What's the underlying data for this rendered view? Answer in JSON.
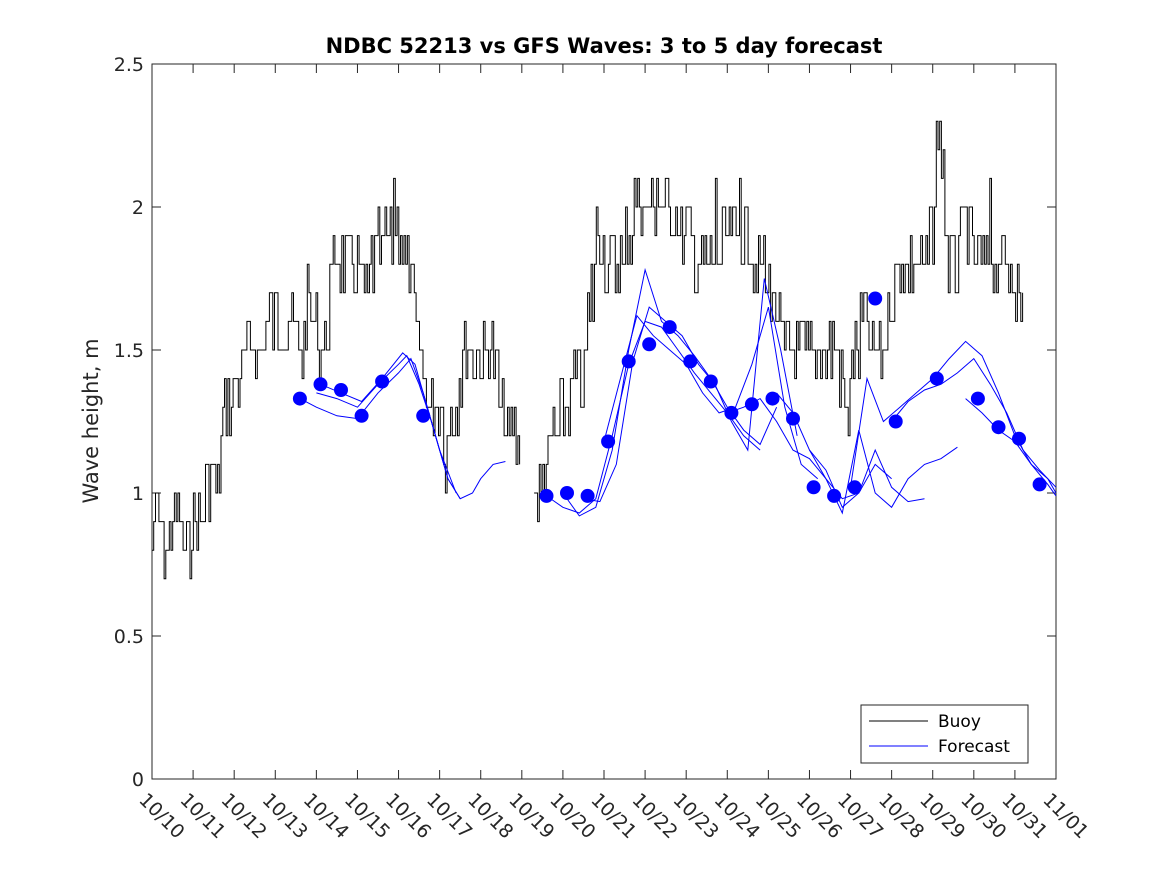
{
  "colors": {
    "buoy": "#000000",
    "forecast": "#0000ff",
    "axis": "#262626"
  },
  "chart_data": {
    "type": "line",
    "title": "NDBC 52213 vs GFS Waves: 3 to 5 day forecast",
    "xlabel": "",
    "ylabel": "Wave height, m",
    "xlim": [
      0,
      22
    ],
    "ylim": [
      0,
      2.5
    ],
    "yticks": [
      0,
      0.5,
      1,
      1.5,
      2,
      2.5
    ],
    "ytick_labels": [
      "0",
      "0.5",
      "1",
      "1.5",
      "2",
      "2.5"
    ],
    "xtick_labels": [
      "10/10",
      "10/11",
      "10/12",
      "10/13",
      "10/14",
      "10/15",
      "10/16",
      "10/17",
      "10/18",
      "10/19",
      "10/20",
      "10/21",
      "10/22",
      "10/23",
      "10/24",
      "10/25",
      "10/26",
      "10/27",
      "10/28",
      "10/29",
      "10/30",
      "10/31",
      "11/01"
    ],
    "grid": false,
    "legend": {
      "location": "bottom-right",
      "entries": [
        "Buoy",
        "Forecast"
      ]
    },
    "buoy_anchors": [
      [
        0.0,
        0.8
      ],
      [
        0.05,
        0.9
      ],
      [
        0.4,
        0.8
      ],
      [
        0.5,
        0.9
      ],
      [
        0.9,
        0.8
      ],
      [
        1.0,
        0.9
      ],
      [
        1.2,
        0.9
      ],
      [
        1.35,
        1.0
      ],
      [
        1.5,
        1.1
      ],
      [
        1.6,
        1.0
      ],
      [
        1.7,
        1.3
      ],
      [
        1.9,
        1.3
      ],
      [
        2.1,
        1.4
      ],
      [
        2.25,
        1.45
      ],
      [
        2.4,
        1.55
      ],
      [
        2.6,
        1.5
      ],
      [
        2.8,
        1.6
      ],
      [
        3.0,
        1.55
      ],
      [
        3.2,
        1.6
      ],
      [
        3.5,
        1.55
      ],
      [
        3.7,
        1.5
      ],
      [
        3.8,
        1.7
      ],
      [
        4.0,
        1.45
      ],
      [
        4.2,
        1.5
      ],
      [
        4.4,
        1.75
      ],
      [
        4.6,
        1.85
      ],
      [
        4.8,
        1.8
      ],
      [
        5.0,
        1.8
      ],
      [
        5.2,
        1.65
      ],
      [
        5.4,
        1.8
      ],
      [
        5.6,
        1.85
      ],
      [
        5.8,
        1.9
      ],
      [
        5.95,
        2.0
      ],
      [
        6.1,
        1.8
      ],
      [
        6.3,
        1.75
      ],
      [
        6.5,
        1.5
      ],
      [
        6.7,
        1.35
      ],
      [
        6.9,
        1.3
      ],
      [
        7.0,
        1.35
      ],
      [
        7.15,
        1.1
      ],
      [
        7.25,
        1.3
      ],
      [
        7.4,
        1.3
      ],
      [
        7.6,
        1.5
      ],
      [
        7.8,
        1.55
      ],
      [
        8.0,
        1.5
      ],
      [
        8.2,
        1.5
      ],
      [
        8.35,
        1.4
      ],
      [
        8.5,
        1.3
      ],
      [
        8.7,
        1.2
      ],
      [
        8.9,
        1.2
      ],
      [
        9.1,
        1.1
      ],
      [
        9.2,
        1.05
      ],
      [
        9.4,
        1.0
      ],
      [
        9.6,
        1.1
      ],
      [
        9.8,
        1.2
      ],
      [
        10.0,
        1.3
      ],
      [
        10.2,
        1.35
      ],
      [
        10.5,
        1.4
      ],
      [
        10.7,
        1.7
      ],
      [
        10.9,
        1.95
      ],
      [
        11.0,
        1.85
      ],
      [
        11.2,
        1.75
      ],
      [
        11.4,
        1.8
      ],
      [
        11.6,
        1.9
      ],
      [
        11.8,
        2.0
      ],
      [
        12.0,
        1.95
      ],
      [
        12.2,
        2.05
      ],
      [
        12.4,
        2.0
      ],
      [
        12.6,
        2.05
      ],
      [
        12.8,
        1.95
      ],
      [
        13.0,
        1.85
      ],
      [
        13.2,
        1.85
      ],
      [
        13.5,
        1.75
      ],
      [
        13.7,
        1.8
      ],
      [
        14.0,
        1.9
      ],
      [
        14.2,
        1.85
      ],
      [
        14.4,
        1.95
      ],
      [
        14.6,
        1.85
      ],
      [
        14.8,
        1.8
      ],
      [
        15.0,
        1.7
      ],
      [
        15.2,
        1.6
      ],
      [
        15.4,
        1.5
      ],
      [
        15.6,
        1.55
      ],
      [
        15.8,
        1.5
      ],
      [
        16.0,
        1.5
      ],
      [
        16.2,
        1.45
      ],
      [
        16.4,
        1.55
      ],
      [
        16.6,
        1.5
      ],
      [
        16.8,
        1.4
      ],
      [
        16.9,
        1.2
      ],
      [
        17.0,
        1.4
      ],
      [
        17.2,
        1.55
      ],
      [
        17.4,
        1.6
      ],
      [
        17.6,
        1.45
      ],
      [
        17.8,
        1.5
      ],
      [
        18.0,
        1.7
      ],
      [
        18.2,
        1.8
      ],
      [
        18.4,
        1.8
      ],
      [
        18.6,
        1.85
      ],
      [
        18.8,
        1.8
      ],
      [
        19.0,
        1.9
      ],
      [
        19.1,
        2.2
      ],
      [
        19.2,
        2.0
      ],
      [
        19.4,
        1.8
      ],
      [
        19.6,
        1.85
      ],
      [
        19.8,
        1.95
      ],
      [
        20.0,
        1.8
      ],
      [
        20.2,
        1.85
      ],
      [
        20.4,
        1.8
      ],
      [
        20.6,
        1.85
      ],
      [
        20.8,
        1.8
      ],
      [
        20.95,
        1.8
      ],
      [
        21.05,
        1.7
      ],
      [
        21.15,
        1.6
      ]
    ],
    "buoy_spikes": [
      [
        1.45,
        1.1
      ],
      [
        4.0,
        1.7
      ],
      [
        5.9,
        2.1
      ],
      [
        5.5,
        2.0
      ],
      [
        12.3,
        2.1
      ],
      [
        12.5,
        2.1
      ],
      [
        13.7,
        2.1
      ],
      [
        14.3,
        2.1
      ],
      [
        19.15,
        2.3
      ],
      [
        19.25,
        2.2
      ],
      [
        20.4,
        2.1
      ],
      [
        6.3,
        1.8
      ],
      [
        7.6,
        1.6
      ],
      [
        10.8,
        2.0
      ]
    ],
    "buoy_segments": [
      [
        0,
        8.95
      ],
      [
        9.3,
        21.2
      ]
    ],
    "forecast_series": [
      {
        "x": [
          3.6,
          4.0,
          4.5,
          5.0,
          5.5,
          6.0,
          6.3,
          6.6,
          6.9,
          7.2,
          7.5,
          7.8,
          8.0,
          8.3,
          8.6
        ],
        "y": [
          1.33,
          1.3,
          1.27,
          1.26,
          1.35,
          1.42,
          1.47,
          1.35,
          1.2,
          1.05,
          0.98,
          1.0,
          1.05,
          1.1,
          1.11
        ]
      },
      {
        "x": [
          4.0,
          4.5,
          5.0,
          5.5,
          6.0,
          6.2,
          6.5,
          6.8,
          7.2,
          7.5
        ],
        "y": [
          1.35,
          1.33,
          1.3,
          1.38,
          1.45,
          1.48,
          1.38,
          1.25,
          1.05,
          0.98
        ]
      },
      {
        "x": [
          4.1,
          4.6,
          5.1,
          5.6,
          6.1,
          6.4,
          6.7,
          7.0,
          7.4
        ],
        "y": [
          1.38,
          1.35,
          1.32,
          1.4,
          1.49,
          1.45,
          1.3,
          1.15,
          1.0
        ]
      },
      {
        "x": [
          9.6,
          10.0,
          10.4,
          10.8,
          11.2,
          11.6,
          12.0,
          12.4,
          12.8,
          13.2,
          13.6,
          14.0,
          14.4,
          14.8
        ],
        "y": [
          0.99,
          0.95,
          0.93,
          0.98,
          1.2,
          1.45,
          1.6,
          1.58,
          1.5,
          1.42,
          1.35,
          1.28,
          1.2,
          1.15
        ]
      },
      {
        "x": [
          10.0,
          10.4,
          10.8,
          11.2,
          11.6,
          12.0,
          12.4,
          12.8,
          13.2,
          13.6,
          14.0,
          14.4,
          14.8,
          15.2
        ],
        "y": [
          1.0,
          0.92,
          0.95,
          1.15,
          1.5,
          1.78,
          1.6,
          1.55,
          1.48,
          1.4,
          1.3,
          1.22,
          1.17,
          1.3
        ]
      },
      {
        "x": [
          10.5,
          10.9,
          11.3,
          11.7,
          12.1,
          12.5,
          12.9,
          13.3,
          13.7,
          14.1,
          14.5,
          14.9,
          15.3,
          15.7
        ],
        "y": [
          0.98,
          0.97,
          1.1,
          1.46,
          1.65,
          1.6,
          1.55,
          1.45,
          1.38,
          1.25,
          1.15,
          1.75,
          1.5,
          1.2
        ]
      },
      {
        "x": [
          11.0,
          11.4,
          11.8,
          12.2,
          12.6,
          13.0,
          13.4,
          13.8,
          14.2,
          14.6,
          15.0,
          15.4,
          15.8,
          16.2
        ],
        "y": [
          1.18,
          1.4,
          1.62,
          1.55,
          1.5,
          1.45,
          1.35,
          1.28,
          1.3,
          1.45,
          1.65,
          1.3,
          1.1,
          1.05
        ]
      },
      {
        "x": [
          14.0,
          14.4,
          14.8,
          15.2,
          15.6,
          16.0,
          16.4,
          16.8,
          17.2,
          17.6,
          18.0
        ],
        "y": [
          1.28,
          1.3,
          1.33,
          1.25,
          1.15,
          1.12,
          1.05,
          0.98,
          1.0,
          1.1,
          1.05
        ]
      },
      {
        "x": [
          15.2,
          15.6,
          16.0,
          16.4,
          16.8,
          17.2,
          17.6,
          18.0,
          18.4,
          18.8
        ],
        "y": [
          1.35,
          1.28,
          1.15,
          1.08,
          0.95,
          1.0,
          1.15,
          1.02,
          0.97,
          0.98
        ]
      },
      {
        "x": [
          16.0,
          16.4,
          16.8,
          17.2,
          17.6,
          18.0,
          18.4,
          18.8,
          19.2,
          19.6
        ],
        "y": [
          1.15,
          1.05,
          0.93,
          1.22,
          1.0,
          0.95,
          1.05,
          1.1,
          1.12,
          1.16
        ]
      },
      {
        "x": [
          17.0,
          17.4,
          17.8,
          18.2,
          18.6,
          19.0,
          19.4,
          19.8,
          20.2,
          20.6,
          21.0,
          21.4,
          21.8,
          22.0
        ],
        "y": [
          1.02,
          1.4,
          1.25,
          1.3,
          1.35,
          1.4,
          1.47,
          1.53,
          1.48,
          1.35,
          1.2,
          1.1,
          1.05,
          1.0
        ]
      },
      {
        "x": [
          18.0,
          18.4,
          18.8,
          19.2,
          19.6,
          20.0,
          20.4,
          20.8,
          21.2,
          21.6,
          22.0
        ],
        "y": [
          1.25,
          1.32,
          1.36,
          1.38,
          1.42,
          1.47,
          1.38,
          1.28,
          1.15,
          1.08,
          1.02
        ]
      },
      {
        "x": [
          19.8,
          20.2,
          20.6,
          21.0,
          21.4,
          21.8,
          22.0
        ],
        "y": [
          1.33,
          1.28,
          1.22,
          1.18,
          1.1,
          1.03,
          0.99
        ]
      }
    ],
    "forecast_points": {
      "x": [
        3.6,
        4.1,
        4.6,
        5.1,
        5.6,
        6.6,
        9.6,
        10.1,
        10.6,
        11.1,
        11.6,
        12.1,
        12.6,
        13.1,
        13.6,
        14.1,
        14.6,
        15.1,
        15.6,
        16.1,
        16.6,
        17.1,
        17.6,
        18.1,
        19.1,
        20.1,
        20.6,
        21.1,
        21.6
      ],
      "y": [
        1.33,
        1.38,
        1.36,
        1.27,
        1.39,
        1.27,
        0.99,
        1.0,
        0.99,
        1.18,
        1.46,
        1.52,
        1.58,
        1.46,
        1.39,
        1.28,
        1.31,
        1.33,
        1.26,
        1.02,
        0.99,
        1.02,
        1.68,
        1.25,
        1.4,
        1.33,
        1.23,
        1.19,
        1.03
      ]
    }
  }
}
